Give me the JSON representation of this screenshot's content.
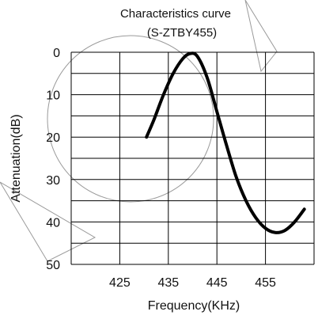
{
  "chart_data": {
    "type": "line",
    "title": "Characteristics curve",
    "subtitle": "(S-ZTBY455)",
    "xlabel": "Frequency(KHz)",
    "ylabel": "Attenuation(dB)",
    "xlim": [
      415,
      465
    ],
    "ylim": [
      0,
      50
    ],
    "y_inverted": true,
    "grid": true,
    "x_ticks": [
      425,
      435,
      445,
      455
    ],
    "y_ticks": [
      0,
      10,
      20,
      30,
      40,
      50
    ],
    "x_tick_labels": [
      "425",
      "435",
      "445",
      "455"
    ],
    "y_tick_labels": [
      "0",
      "10",
      "20",
      "30",
      "40",
      "50"
    ],
    "series": [
      {
        "x": [
          430.5,
          432,
          434,
          436,
          438,
          439.5,
          441,
          443,
          445,
          447,
          449,
          451,
          453,
          455,
          457,
          459,
          461,
          463
        ],
        "y": [
          20,
          16,
          10,
          5,
          1.5,
          0.3,
          1,
          6,
          14,
          22,
          29.5,
          35,
          39,
          41.5,
          42.5,
          42,
          40,
          37
        ]
      }
    ],
    "colors": {
      "line": "#000000",
      "grid": "#000000",
      "background": "#ffffff"
    }
  }
}
